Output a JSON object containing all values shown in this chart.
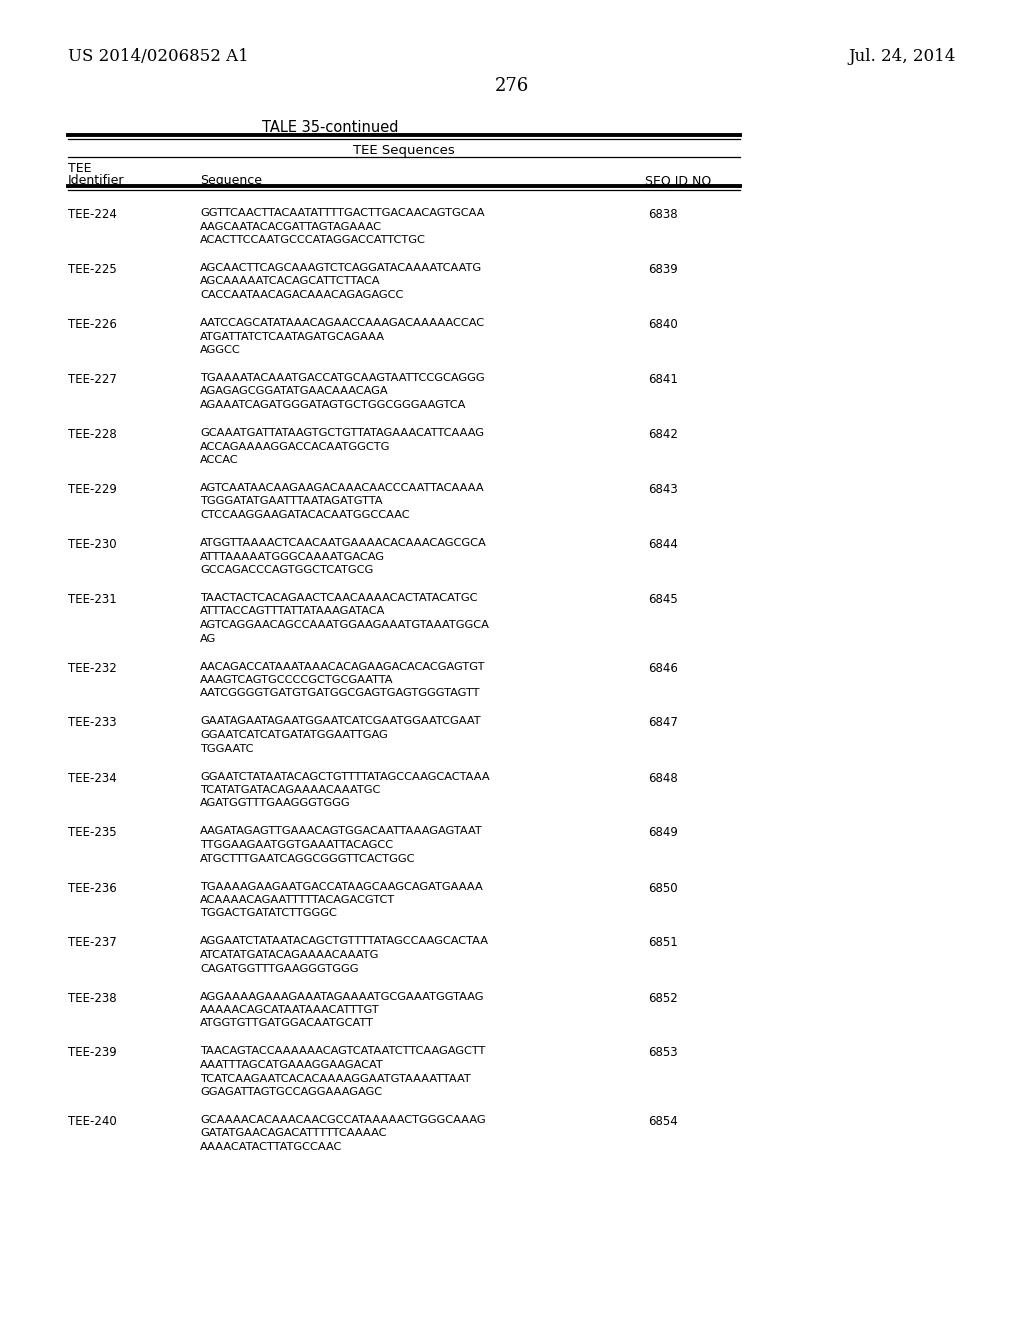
{
  "header_left": "US 2014/0206852 A1",
  "header_right": "Jul. 24, 2014",
  "page_number": "276",
  "table_title": "TALE 35-continued",
  "col_header_span": "TEE Sequences",
  "col1_label1": "TEE",
  "col1_label2": "Identifier",
  "col2_header": "Sequence",
  "col3_header": "SEQ ID NO",
  "entries": [
    {
      "id": "TEE-224",
      "seq": "GGTTCAACTTACAATATTTTGACTTGACAACAGTGCAA\nAAGCAATACACGATTAGTAGAAAC\nACACTTCCAATGCCCATAGGACCATTCTGC",
      "seqid": "6838"
    },
    {
      "id": "TEE-225",
      "seq": "AGCAACTTCAGCAAAGTCTCAGGATACAAAATCAATG\nAGCAAAAATCACAGCATTCTTACA\nCACCAATAACAGACAAACAGAGAGCC",
      "seqid": "6839"
    },
    {
      "id": "TEE-226",
      "seq": "AATCCAGCATATAAACAGAACCAAAGACAAAAACCAC\nATGATTATCTCAATAGATGCAGAAA\nAGGCC",
      "seqid": "6840"
    },
    {
      "id": "TEE-227",
      "seq": "TGAAAATACAAATGACCATGCAAGTAATTCCGCAGGG\nAGAGAGCGGATATGAACAAACAGA\nAGAAATCAGATGGGATAGTGCTGGCGGGAAGTCA",
      "seqid": "6841"
    },
    {
      "id": "TEE-228",
      "seq": "GCAAATGATTATAAGTGCTGTTATAGAAACATTCAAAG\nACCAGAAAAGGACCACAATGGCTG\nACCAC",
      "seqid": "6842"
    },
    {
      "id": "TEE-229",
      "seq": "AGTCAATAACAAGAAGACAAACAACCCAATTACAAAA\nTGGGATATGAATTTAATAGATGTTA\nCTCCAAGGAAGATACACAATGGCCAAC",
      "seqid": "6843"
    },
    {
      "id": "TEE-230",
      "seq": "ATGGTTAAAACTCAACAATGAAAACACAAACAGCGCA\nATTTAAAAATGGGCAAAATGACAG\nGCCAGACCCAGTGGCTCATGCG",
      "seqid": "6844"
    },
    {
      "id": "TEE-231",
      "seq": "TAACTACTCACAGAACTCAACAAAACACTATACATGC\nATTTACCAGTTTATTATAAAGATACA\nAGTCAGGAACAGCCAAATGGAAGAAATGTAAATGGCA\nAG",
      "seqid": "6845"
    },
    {
      "id": "TEE-232",
      "seq": "AACAGACCATAAATAAACACAGAAGACACACGAGTGT\nAAAGTCAGTGCCCCGCTGCGAATTA\nAATCGGGGTGATGTGATGGCGAGTGAGTGGGTAGTT",
      "seqid": "6846"
    },
    {
      "id": "TEE-233",
      "seq": "GAATAGAATAGAATGGAATCATCGAATGGAATCGAAT\nGGAATCATCATGATATGGAATTGAG\nTGGAATC",
      "seqid": "6847"
    },
    {
      "id": "TEE-234",
      "seq": "GGAATCTATAATACAGCTGTTTTATAGCCAAGCACTAAA\nTCATATGATACAGAAAACAAATGC\nAGATGGTTTGAAGGGTGGG",
      "seqid": "6848"
    },
    {
      "id": "TEE-235",
      "seq": "AAGATAGAGTTGAAACAGTGGACAATTAAAGAGTAAT\nTTGGAAGAATGGTGAAATTACAGCC\nATGCTTTGAATCAGGCGGGTTCACTGGC",
      "seqid": "6849"
    },
    {
      "id": "TEE-236",
      "seq": "TGAAAAGAAGAATGACCATAAGCAAGCAGATGAAAA\nACAAAACAGAATTTTTACAGACGTCT\nTGGACTGATATCTTGGGC",
      "seqid": "6850"
    },
    {
      "id": "TEE-237",
      "seq": "AGGAATCTATAATACAGCTGTTTTATAGCCAAGCACTAA\nATCATATGATACAGAAAACAAATG\nCAGATGGTTTGAAGGGTGGG",
      "seqid": "6851"
    },
    {
      "id": "TEE-238",
      "seq": "AGGAAAAGAAAGAAATAGAAAATGCGAAATGGTAAG\nAAAAACAGCATAATAAACATTTGT\nATGGTGTTGATGGACAATGCATT",
      "seqid": "6852"
    },
    {
      "id": "TEE-239",
      "seq": "TAACAGTACCAAAAAACAGTCATAATCTTCAAGAGCTT\nAAATTTAGCATGAAAGGAAGACAT\nTCATCAAGAATCACACAAAAGGAATGTAAAATTAAT\nGGAGATTAGTGCCAGGAAAGAGC",
      "seqid": "6853"
    },
    {
      "id": "TEE-240",
      "seq": "GCAAAACACAAACAACGCCATAAAAACTGGGCAAAG\nGATATGAACAGACATTTTTCAAAAC\nAAAACATACTTATGCCAAC",
      "seqid": "6854"
    }
  ],
  "bg_color": "#ffffff",
  "text_color": "#000000"
}
